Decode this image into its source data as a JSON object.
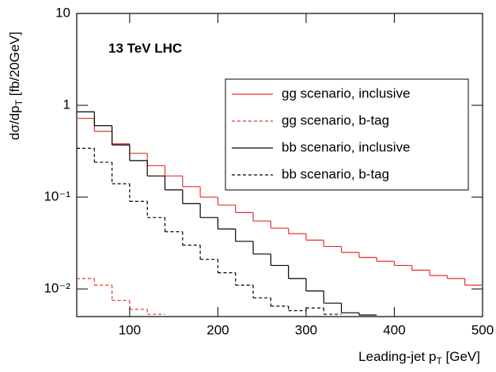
{
  "chart_data": {
    "type": "histogram",
    "annotation": "13 TeV LHC",
    "x_label": {
      "main": "Leading-jet p",
      "sub": "T",
      "unit": " [GeV]"
    },
    "y_label": {
      "main": "dσ/dp",
      "sub": "T",
      "unit": " [fb/20GeV]"
    },
    "bins": [
      40,
      60,
      80,
      100,
      120,
      140,
      160,
      180,
      200,
      220,
      240,
      260,
      280,
      300,
      320,
      340,
      360,
      380,
      400,
      420,
      440,
      460,
      480,
      500
    ],
    "xlim": [
      40,
      500
    ],
    "xticks": [
      100,
      200,
      300,
      400,
      500
    ],
    "ylim": [
      0.005,
      10
    ],
    "yticks": [
      10,
      1,
      {
        "value": 0.1,
        "label": "10⁻¹"
      },
      {
        "value": 0.01,
        "label": "10⁻²"
      }
    ],
    "log_y": true,
    "legend": "upper right",
    "series": [
      {
        "name": "gg scenario, inclusive",
        "color": "#e8322a",
        "dashed": false,
        "values": [
          0.72,
          0.52,
          0.38,
          0.3,
          0.22,
          0.17,
          0.13,
          0.1,
          0.082,
          0.068,
          0.055,
          0.046,
          0.04,
          0.034,
          0.029,
          0.025,
          0.022,
          0.02,
          0.018,
          0.016,
          0.014,
          0.013,
          0.011
        ]
      },
      {
        "name": "gg scenario, b-tag",
        "color": "#e8322a",
        "dashed": true,
        "values": [
          0.013,
          0.011,
          0.0075,
          0.006,
          0.0053,
          null,
          null,
          null,
          null,
          null,
          null,
          null,
          null,
          null,
          null,
          null,
          null,
          null,
          null,
          null,
          null,
          null,
          null
        ]
      },
      {
        "name": "bb scenario, inclusive",
        "color": "#000000",
        "dashed": false,
        "values": [
          0.85,
          0.6,
          0.37,
          0.25,
          0.17,
          0.12,
          0.085,
          0.06,
          0.045,
          0.033,
          0.024,
          0.018,
          0.013,
          0.0095,
          0.007,
          0.0055,
          0.0052,
          null,
          null,
          null,
          null,
          null,
          null
        ]
      },
      {
        "name": "bb scenario, b-tag",
        "color": "#000000",
        "dashed": true,
        "values": [
          0.34,
          0.24,
          0.14,
          0.09,
          0.06,
          0.042,
          0.03,
          0.021,
          0.015,
          0.011,
          0.008,
          0.0065,
          0.0058,
          0.0062,
          0.0053,
          null,
          null,
          null,
          null,
          null,
          null,
          null,
          null
        ]
      }
    ]
  }
}
